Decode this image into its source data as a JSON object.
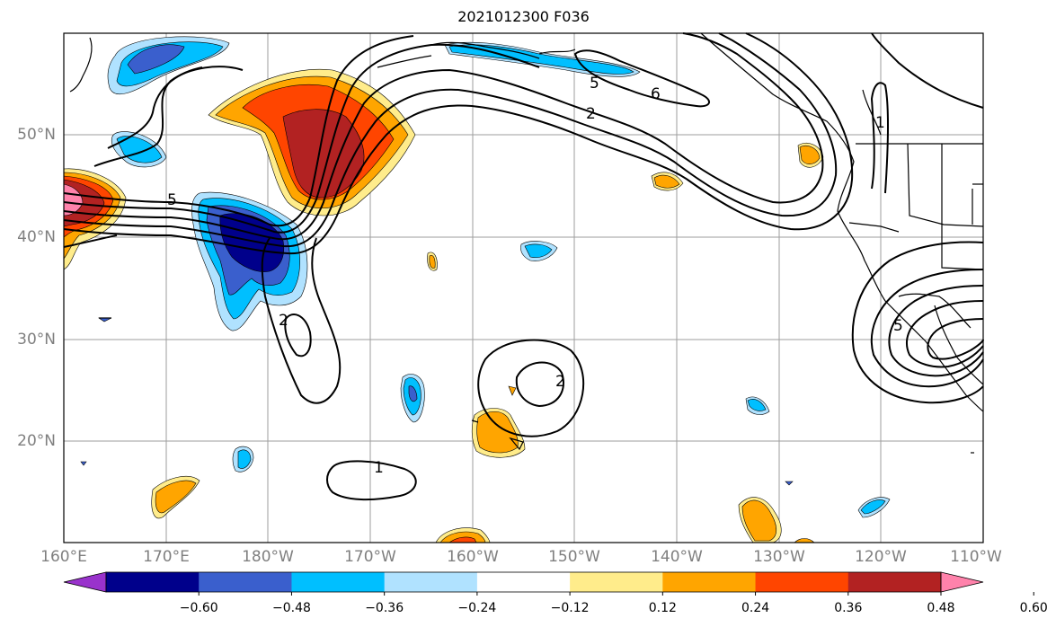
{
  "title": "2021012300 F036",
  "y_axis_labels": [
    "50°N",
    "40°N",
    "30°N",
    "20°N"
  ],
  "x_axis_labels": [
    "160°E",
    "170°E",
    "180°W",
    "170°W",
    "160°W",
    "150°W",
    "140°W",
    "130°W",
    "120°W",
    "110°W"
  ],
  "contour_labels": [
    "5",
    "2",
    "5",
    "6",
    "1",
    "2",
    "2",
    "1",
    "5"
  ],
  "colorbar": {
    "tick_labels": [
      "−0.60",
      "−0.48",
      "−0.36",
      "−0.24",
      "−0.12",
      "0.12",
      "0.24",
      "0.36",
      "0.48",
      "0.60"
    ],
    "colors": [
      "#9932cc",
      "#00008b",
      "#3a5fcd",
      "#00bfff",
      "#b0e2ff",
      "#ffffff",
      "#ffec8b",
      "#ffa500",
      "#ff4500",
      "#b22222",
      "#ff82ab"
    ]
  }
}
